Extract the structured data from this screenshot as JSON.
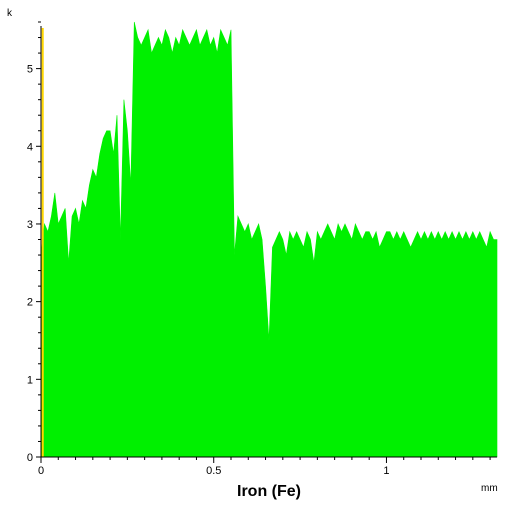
{
  "chart_data": {
    "type": "area",
    "title": "",
    "xlabel": "Iron (Fe)",
    "ylabel": "",
    "x_unit": "mm",
    "y_unit": "k",
    "xlim": [
      0,
      1.32
    ],
    "ylim": [
      0,
      5.6
    ],
    "x_ticks": [
      0,
      0.5,
      1
    ],
    "x_tick_labels": [
      "0",
      "0.5",
      "1"
    ],
    "y_ticks": [
      0,
      1,
      2,
      3,
      4,
      5
    ],
    "y_tick_labels": [
      "0",
      "1",
      "2",
      "3",
      "4",
      "5"
    ],
    "fill_color": "#00f000",
    "marker_color": "#ffd700",
    "marker_x": 0.005,
    "series": [
      {
        "x": [
          0,
          0.01,
          0.02,
          0.03,
          0.04,
          0.05,
          0.06,
          0.07,
          0.08,
          0.09,
          0.1,
          0.11,
          0.12,
          0.13,
          0.14,
          0.15,
          0.16,
          0.17,
          0.18,
          0.19,
          0.2,
          0.21,
          0.22,
          0.23,
          0.24,
          0.25,
          0.26,
          0.27,
          0.28,
          0.29,
          0.3,
          0.31,
          0.32,
          0.33,
          0.34,
          0.35,
          0.36,
          0.37,
          0.38,
          0.39,
          0.4,
          0.41,
          0.42,
          0.43,
          0.44,
          0.45,
          0.46,
          0.47,
          0.48,
          0.49,
          0.5,
          0.51,
          0.52,
          0.53,
          0.54,
          0.55,
          0.56,
          0.57,
          0.58,
          0.59,
          0.6,
          0.61,
          0.62,
          0.63,
          0.64,
          0.65,
          0.66,
          0.67,
          0.68,
          0.69,
          0.7,
          0.71,
          0.72,
          0.73,
          0.74,
          0.75,
          0.76,
          0.77,
          0.78,
          0.79,
          0.8,
          0.81,
          0.82,
          0.83,
          0.84,
          0.85,
          0.86,
          0.87,
          0.88,
          0.89,
          0.9,
          0.91,
          0.92,
          0.93,
          0.94,
          0.95,
          0.96,
          0.97,
          0.98,
          0.99,
          1.0,
          1.01,
          1.02,
          1.03,
          1.04,
          1.05,
          1.06,
          1.07,
          1.08,
          1.09,
          1.1,
          1.11,
          1.12,
          1.13,
          1.14,
          1.15,
          1.16,
          1.17,
          1.18,
          1.19,
          1.2,
          1.21,
          1.22,
          1.23,
          1.24,
          1.25,
          1.26,
          1.27,
          1.28,
          1.29,
          1.3,
          1.31,
          1.32
        ],
        "values": [
          2.6,
          3.0,
          2.9,
          3.1,
          3.4,
          3.0,
          3.1,
          3.2,
          2.5,
          3.1,
          3.2,
          3.0,
          3.3,
          3.2,
          3.5,
          3.7,
          3.6,
          3.9,
          4.1,
          4.2,
          4.2,
          3.9,
          4.4,
          2.8,
          4.6,
          4.2,
          3.5,
          5.6,
          5.4,
          5.3,
          5.4,
          5.5,
          5.2,
          5.3,
          5.4,
          5.3,
          5.5,
          5.4,
          5.2,
          5.4,
          5.3,
          5.5,
          5.4,
          5.3,
          5.4,
          5.5,
          5.3,
          5.4,
          5.5,
          5.3,
          5.4,
          5.2,
          5.5,
          5.4,
          5.3,
          5.5,
          2.6,
          3.1,
          3.0,
          2.9,
          3.0,
          2.8,
          2.9,
          3.0,
          2.8,
          2.2,
          1.5,
          2.7,
          2.8,
          2.9,
          2.8,
          2.6,
          2.9,
          2.8,
          2.9,
          2.8,
          2.7,
          2.9,
          2.8,
          2.5,
          2.9,
          2.8,
          2.9,
          3.0,
          2.9,
          2.8,
          3.0,
          2.9,
          3.0,
          2.9,
          2.8,
          3.0,
          2.9,
          2.8,
          2.9,
          2.9,
          2.8,
          2.9,
          2.7,
          2.8,
          2.9,
          2.9,
          2.8,
          2.9,
          2.8,
          2.9,
          2.8,
          2.7,
          2.8,
          2.9,
          2.8,
          2.9,
          2.8,
          2.9,
          2.8,
          2.9,
          2.8,
          2.9,
          2.8,
          2.9,
          2.8,
          2.9,
          2.8,
          2.9,
          2.8,
          2.9,
          2.8,
          2.9,
          2.8,
          2.7,
          2.9,
          2.8,
          2.8
        ]
      }
    ]
  }
}
